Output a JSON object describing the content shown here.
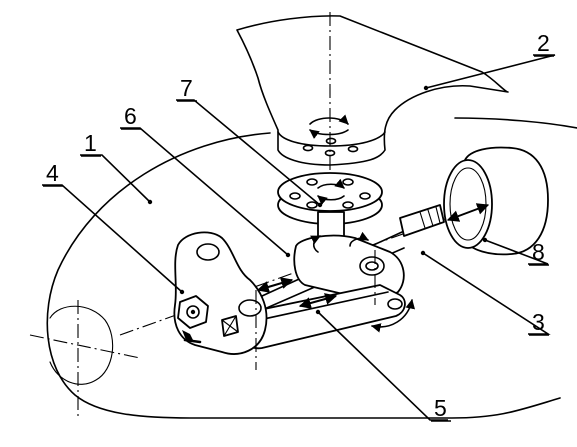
{
  "labels": {
    "l1": "1",
    "l2": "2",
    "l3": "3",
    "l4": "4",
    "l5": "5",
    "l6": "6",
    "l7": "7",
    "l8": "8"
  }
}
